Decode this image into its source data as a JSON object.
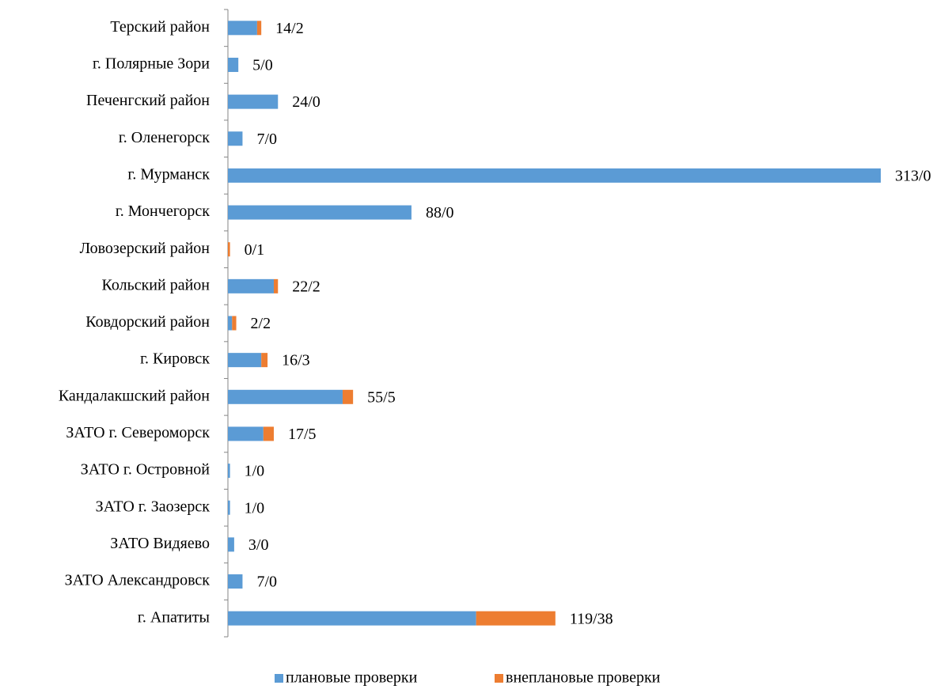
{
  "chart_data": {
    "type": "stacked-bar-horizontal",
    "categories": [
      "Терский район",
      "г. Полярные Зори",
      "Печенгский район",
      "г. Оленегорск",
      "г. Мурманск",
      "г. Мончегорск",
      "Ловозерский район",
      "Кольский район",
      "Ковдорский район",
      "г. Кировск",
      "Кандалакшский район",
      "ЗАТО г. Североморск",
      "ЗАТО г. Островной",
      "ЗАТО г. Заозерск",
      "ЗАТО Видяево",
      "ЗАТО Александровск",
      "г. Апатиты"
    ],
    "series": [
      {
        "name": "плановые проверки",
        "color": "#5b9bd5",
        "values": [
          14,
          5,
          24,
          7,
          313,
          88,
          0,
          22,
          2,
          16,
          55,
          17,
          1,
          1,
          3,
          7,
          119
        ]
      },
      {
        "name": "внеплановые проверки",
        "color": "#ed7d31",
        "values": [
          2,
          0,
          0,
          0,
          0,
          0,
          1,
          2,
          2,
          3,
          5,
          5,
          0,
          0,
          0,
          0,
          38
        ]
      }
    ],
    "value_labels": [
      "14/2",
      "5/0",
      "24/0",
      "7/0",
      "313/0",
      "88/0",
      "0/1",
      "22/2",
      "2/2",
      "16/3",
      "55/5",
      "17/5",
      "1/0",
      "1/0",
      "3/0",
      "7/0",
      "119/38"
    ],
    "xlim": [
      0,
      313
    ],
    "legend": "bottom"
  }
}
